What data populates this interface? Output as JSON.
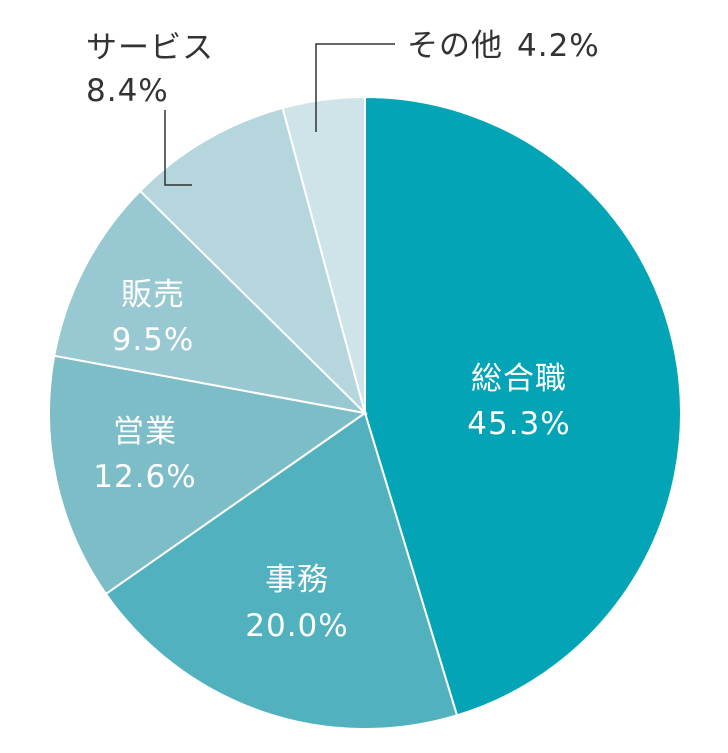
{
  "chart_data": {
    "type": "pie",
    "slices": [
      {
        "name": "総合職",
        "label": "45.3%",
        "value": 45.3,
        "color": "#02a4b5"
      },
      {
        "name": "事務",
        "label": "20.0%",
        "value": 20.0,
        "color": "#51b1bf"
      },
      {
        "name": "営業",
        "label": "12.6%",
        "value": 12.6,
        "color": "#7dbdc8"
      },
      {
        "name": "販売",
        "label": "9.5%",
        "value": 9.5,
        "color": "#98c8d2"
      },
      {
        "name": "サービス",
        "label": "8.4%",
        "value": 8.4,
        "color": "#b5d6dd"
      },
      {
        "name": "その他",
        "label": "4.2%",
        "value": 4.2,
        "color": "#cfe4e8"
      }
    ]
  }
}
